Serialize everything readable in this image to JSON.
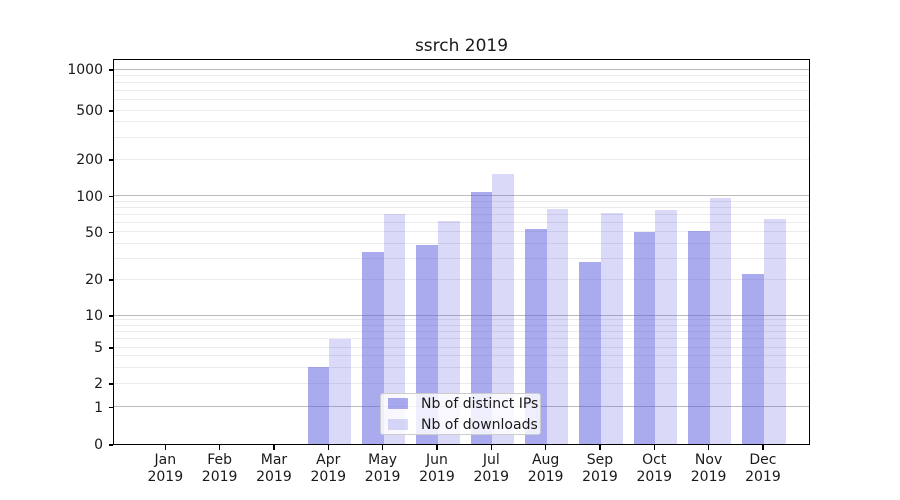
{
  "title": "ssrch 2019",
  "chart_data": {
    "type": "bar",
    "title": "ssrch 2019",
    "months": [
      "Jan",
      "Feb",
      "Mar",
      "Apr",
      "May",
      "Jun",
      "Jul",
      "Aug",
      "Sep",
      "Oct",
      "Nov",
      "Dec"
    ],
    "year": "2019",
    "series": [
      {
        "name": "Nb of distinct IPs",
        "color": "rgba(85,85,221,0.5)",
        "solid_hex": "#aaaaee",
        "values": [
          0,
          0,
          0,
          3,
          34,
          39,
          107,
          53,
          28,
          50,
          51,
          22
        ]
      },
      {
        "name": "Nb of downloads",
        "color": "rgba(85,85,221,0.22)",
        "solid_hex": "#dadaf7",
        "values": [
          0,
          0,
          0,
          6,
          70,
          61,
          152,
          77,
          72,
          76,
          96,
          64
        ]
      }
    ],
    "xlabel": "",
    "ylabel": "",
    "yscale": "symlog",
    "yticks": [
      0,
      1,
      2,
      5,
      10,
      20,
      50,
      100,
      200,
      500,
      1000
    ],
    "ylim": [
      0,
      1200
    ],
    "grid": "horizontal major+minor",
    "grid_major_color": "#bcbcbc",
    "grid_minor_color": "#ebebeb",
    "legend_position": "lower center"
  }
}
